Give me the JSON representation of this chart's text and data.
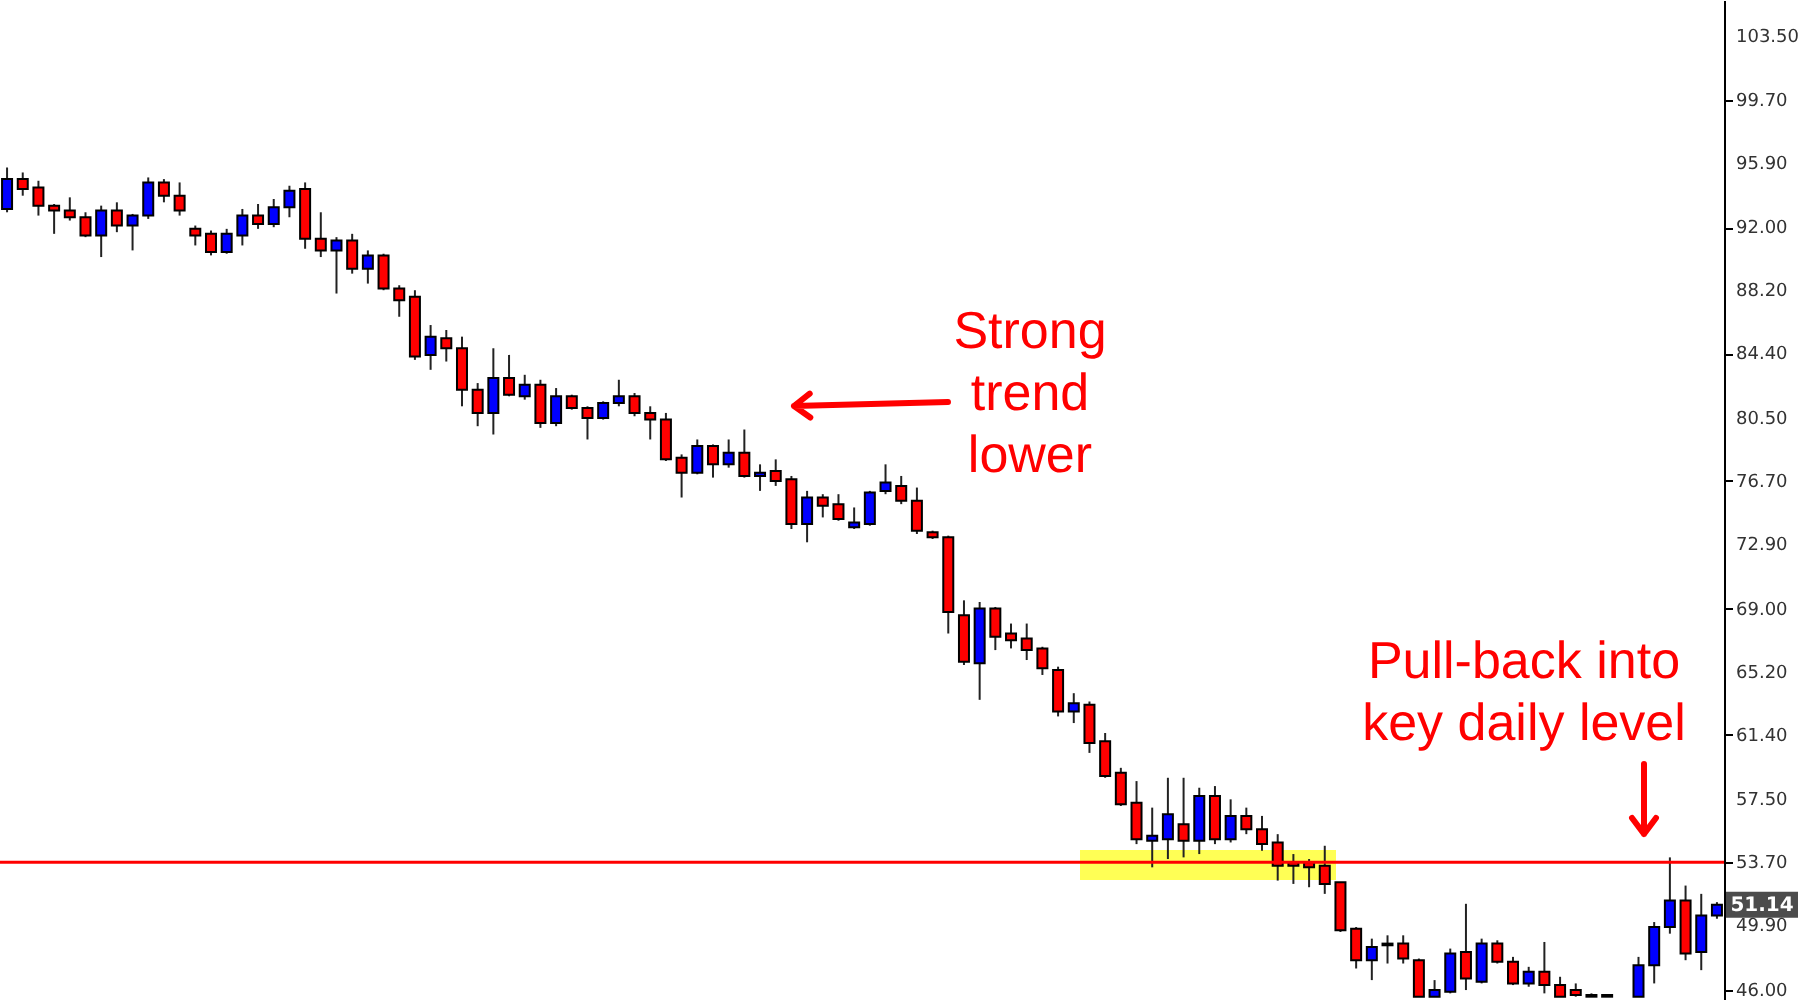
{
  "chart_data": {
    "type": "candlestick",
    "categories": [
      null,
      null,
      null,
      null,
      null,
      null,
      null,
      null,
      null,
      null,
      null,
      null,
      null,
      null,
      null,
      null,
      null,
      null,
      null,
      null,
      null,
      null,
      null,
      null,
      null,
      null,
      null,
      null,
      null,
      null,
      null,
      null,
      null,
      null,
      null,
      null,
      null,
      null,
      null,
      null,
      null,
      null,
      null,
      null,
      null,
      null,
      null,
      null,
      null,
      null,
      null,
      null,
      null,
      null,
      null,
      null,
      null,
      null,
      null,
      null,
      null,
      null,
      null,
      null,
      null,
      null,
      null,
      null,
      null,
      null,
      null,
      null,
      null,
      null,
      null,
      null,
      null,
      null,
      null,
      null,
      null,
      null,
      null,
      null,
      null,
      null,
      null,
      null,
      null,
      null,
      null,
      null,
      null,
      null,
      null,
      null,
      null,
      null,
      null,
      null,
      null,
      null,
      null,
      null,
      null,
      null,
      null,
      null,
      null,
      null
    ],
    "ohlc": [
      [
        93.1,
        95.6,
        92.9,
        94.9
      ],
      [
        94.9,
        95.3,
        93.9,
        94.3
      ],
      [
        94.4,
        94.8,
        92.7,
        93.3
      ],
      [
        93.3,
        93.4,
        91.6,
        93.0
      ],
      [
        93.0,
        93.8,
        92.4,
        92.6
      ],
      [
        92.6,
        92.9,
        91.4,
        91.5
      ],
      [
        91.5,
        93.3,
        90.2,
        93.0
      ],
      [
        93.0,
        93.5,
        91.7,
        92.1
      ],
      [
        92.1,
        92.8,
        90.6,
        92.7
      ],
      [
        92.7,
        95.0,
        92.5,
        94.7
      ],
      [
        94.7,
        94.9,
        93.5,
        93.9
      ],
      [
        93.9,
        94.7,
        92.7,
        93.0
      ],
      [
        91.9,
        92.1,
        90.9,
        91.5
      ],
      [
        91.6,
        91.8,
        90.3,
        90.5
      ],
      [
        90.5,
        91.9,
        90.4,
        91.6
      ],
      [
        91.5,
        93.1,
        90.9,
        92.7
      ],
      [
        92.7,
        93.4,
        91.9,
        92.2
      ],
      [
        92.2,
        93.7,
        92.0,
        93.2
      ],
      [
        93.2,
        94.5,
        92.6,
        94.2
      ],
      [
        94.3,
        94.7,
        90.7,
        91.3
      ],
      [
        91.3,
        92.9,
        90.2,
        90.6
      ],
      [
        90.6,
        91.4,
        88.0,
        91.2
      ],
      [
        91.2,
        91.6,
        89.2,
        89.5
      ],
      [
        89.5,
        90.6,
        88.6,
        90.3
      ],
      [
        90.3,
        90.4,
        88.2,
        88.3
      ],
      [
        88.3,
        88.5,
        86.6,
        87.6
      ],
      [
        87.8,
        88.2,
        84.0,
        84.2
      ],
      [
        84.3,
        86.1,
        83.4,
        85.4
      ],
      [
        85.3,
        85.8,
        83.9,
        84.7
      ],
      [
        84.7,
        85.4,
        81.2,
        82.2
      ],
      [
        82.2,
        82.6,
        80.0,
        80.8
      ],
      [
        80.8,
        84.7,
        79.5,
        82.9
      ],
      [
        82.9,
        84.3,
        81.8,
        81.9
      ],
      [
        81.8,
        83.1,
        81.6,
        82.5
      ],
      [
        82.5,
        82.8,
        79.9,
        80.2
      ],
      [
        80.2,
        82.3,
        80.0,
        81.8
      ],
      [
        81.8,
        81.9,
        81.0,
        81.1
      ],
      [
        81.1,
        81.2,
        79.2,
        80.5
      ],
      [
        80.5,
        81.5,
        80.4,
        81.4
      ],
      [
        81.4,
        82.8,
        81.2,
        81.8
      ],
      [
        81.8,
        82.0,
        80.6,
        80.8
      ],
      [
        80.8,
        81.2,
        79.2,
        80.4
      ],
      [
        80.4,
        80.8,
        77.9,
        78.0
      ],
      [
        78.1,
        78.3,
        75.7,
        77.2
      ],
      [
        77.2,
        79.2,
        77.1,
        78.8
      ],
      [
        78.8,
        78.9,
        76.9,
        77.7
      ],
      [
        77.7,
        79.2,
        77.5,
        78.4
      ],
      [
        78.4,
        79.8,
        76.9,
        77.0
      ],
      [
        77.0,
        77.7,
        76.1,
        77.2
      ],
      [
        77.3,
        78.0,
        76.4,
        76.7
      ],
      [
        76.8,
        77.0,
        73.8,
        74.1
      ],
      [
        74.1,
        76.1,
        73.0,
        75.7
      ],
      [
        75.7,
        75.9,
        74.5,
        75.2
      ],
      [
        75.3,
        75.9,
        74.3,
        74.4
      ],
      [
        73.9,
        75.1,
        73.8,
        74.2
      ],
      [
        74.1,
        76.1,
        74.0,
        76.0
      ],
      [
        76.1,
        77.7,
        75.9,
        76.6
      ],
      [
        76.4,
        77.0,
        75.3,
        75.5
      ],
      [
        75.5,
        76.3,
        73.5,
        73.7
      ],
      [
        73.6,
        73.7,
        73.2,
        73.3
      ],
      [
        73.3,
        73.4,
        67.5,
        68.8
      ],
      [
        68.6,
        69.5,
        65.6,
        65.8
      ],
      [
        65.7,
        69.4,
        63.5,
        69.0
      ],
      [
        69.0,
        69.1,
        66.5,
        67.3
      ],
      [
        67.5,
        68.1,
        66.6,
        67.1
      ],
      [
        67.2,
        68.1,
        65.9,
        66.5
      ],
      [
        66.6,
        66.7,
        65.0,
        65.4
      ],
      [
        65.3,
        65.5,
        62.5,
        62.8
      ],
      [
        62.8,
        63.9,
        62.1,
        63.3
      ],
      [
        63.2,
        63.4,
        60.3,
        60.9
      ],
      [
        61.0,
        61.5,
        58.8,
        58.9
      ],
      [
        59.1,
        59.4,
        57.1,
        57.2
      ],
      [
        57.3,
        58.6,
        54.8,
        55.1
      ],
      [
        55.0,
        57.0,
        53.4,
        55.3
      ],
      [
        55.1,
        58.8,
        53.9,
        56.6
      ],
      [
        56.0,
        58.8,
        54.0,
        55.0
      ],
      [
        55.0,
        58.2,
        54.2,
        57.7
      ],
      [
        57.7,
        58.3,
        54.8,
        55.1
      ],
      [
        55.1,
        57.5,
        54.9,
        56.5
      ],
      [
        56.5,
        57.0,
        55.4,
        55.7
      ],
      [
        55.7,
        56.5,
        54.4,
        54.8
      ],
      [
        54.9,
        55.4,
        52.6,
        53.5
      ],
      [
        53.7,
        54.2,
        52.4,
        53.5
      ],
      [
        53.7,
        53.9,
        52.2,
        53.4
      ],
      [
        53.5,
        54.7,
        51.8,
        52.4
      ],
      [
        52.5,
        52.5,
        49.5,
        49.6
      ],
      [
        49.7,
        49.8,
        47.3,
        47.8
      ],
      [
        47.8,
        49.1,
        46.6,
        48.6
      ],
      [
        48.8,
        49.3,
        47.6,
        48.7
      ],
      [
        48.8,
        49.3,
        47.6,
        47.9
      ],
      [
        47.8,
        47.9,
        45.6,
        45.6
      ],
      [
        45.6,
        46.6,
        45.6,
        46.0
      ],
      [
        45.9,
        48.5,
        45.8,
        48.2
      ],
      [
        48.3,
        51.2,
        46.0,
        46.7
      ],
      [
        46.5,
        49.1,
        46.4,
        48.8
      ],
      [
        48.8,
        49.0,
        47.6,
        47.7
      ],
      [
        47.7,
        48.0,
        46.3,
        46.4
      ],
      [
        46.4,
        47.4,
        46.2,
        47.1
      ],
      [
        47.1,
        48.9,
        45.8,
        46.3
      ],
      [
        46.3,
        46.8,
        45.6,
        45.6
      ],
      [
        46.0,
        46.4,
        45.6,
        45.7
      ],
      [
        45.6,
        45.8,
        45.6,
        45.7
      ],
      [
        45.7,
        45.7,
        45.6,
        45.6
      ],
      null,
      [
        45.6,
        48.0,
        45.6,
        47.5
      ],
      [
        47.5,
        50.1,
        46.4,
        49.8
      ],
      [
        49.8,
        54.0,
        49.4,
        51.4
      ],
      [
        51.4,
        52.3,
        47.8,
        48.2
      ],
      [
        48.3,
        51.8,
        47.2,
        50.5
      ],
      [
        50.5,
        51.3,
        50.3,
        51.14
      ]
    ],
    "colors": [
      "#0000ff",
      "#ff0000",
      "#ff0000",
      "#ff0000",
      "#ff0000",
      "#ff0000",
      "#0000ff",
      "#ff0000",
      "#0000ff",
      "#0000ff",
      "#ff0000",
      "#ff0000",
      "#ff0000",
      "#ff0000",
      "#0000ff",
      "#0000ff",
      "#ff0000",
      "#0000ff",
      "#0000ff",
      "#ff0000",
      "#ff0000",
      "#0000ff",
      "#ff0000",
      "#0000ff",
      "#ff0000",
      "#ff0000",
      "#ff0000",
      "#0000ff",
      "#ff0000",
      "#ff0000",
      "#ff0000",
      "#0000ff",
      "#ff0000",
      "#0000ff",
      "#ff0000",
      "#0000ff",
      "#ff0000",
      "#ff0000",
      "#0000ff",
      "#0000ff",
      "#ff0000",
      "#ff0000",
      "#ff0000",
      "#ff0000",
      "#0000ff",
      "#ff0000",
      "#0000ff",
      "#ff0000",
      "#0000ff",
      "#ff0000",
      "#ff0000",
      "#0000ff",
      "#ff0000",
      "#ff0000",
      "#0000ff",
      "#0000ff",
      "#0000ff",
      "#ff0000",
      "#ff0000",
      "#ff0000",
      "#ff0000",
      "#ff0000",
      "#0000ff",
      "#ff0000",
      "#ff0000",
      "#ff0000",
      "#ff0000",
      "#ff0000",
      "#0000ff",
      "#ff0000",
      "#ff0000",
      "#ff0000",
      "#ff0000",
      "#0000ff",
      "#0000ff",
      "#ff0000",
      "#0000ff",
      "#ff0000",
      "#0000ff",
      "#ff0000",
      "#ff0000",
      "#ff0000",
      "#ff0000",
      "#ff0000",
      "#ff0000",
      "#ff0000",
      "#ff0000",
      "#0000ff",
      "#ff0000",
      "#ff0000",
      "#ff0000",
      "#0000ff",
      "#0000ff",
      "#ff0000",
      "#0000ff",
      "#ff0000",
      "#ff0000",
      "#0000ff",
      "#ff0000",
      "#ff0000",
      "#ff0000",
      "#0000ff",
      "#ff0000",
      null,
      "#0000ff",
      "#0000ff",
      "#0000ff",
      "#ff0000",
      "#0000ff",
      "#0000ff"
    ],
    "ylim": [
      45.4,
      105.7
    ],
    "yticks": [
      {
        "value": 46.0,
        "label": "46.00"
      },
      {
        "value": 49.9,
        "label": "49.90"
      },
      {
        "value": 53.7,
        "label": "53.70"
      },
      {
        "value": 57.5,
        "label": "57.50"
      },
      {
        "value": 61.4,
        "label": "61.40"
      },
      {
        "value": 65.2,
        "label": "65.20"
      },
      {
        "value": 69.0,
        "label": "69.00"
      },
      {
        "value": 72.9,
        "label": "72.90"
      },
      {
        "value": 76.7,
        "label": "76.70"
      },
      {
        "value": 80.5,
        "label": "80.50"
      },
      {
        "value": 84.4,
        "label": "84.40"
      },
      {
        "value": 88.2,
        "label": "88.20"
      },
      {
        "value": 92.0,
        "label": "92.00"
      },
      {
        "value": 95.9,
        "label": "95.90"
      },
      {
        "value": 99.7,
        "label": "99.70"
      },
      {
        "value": 103.5,
        "label": "103.50"
      }
    ],
    "ref_lines": [
      {
        "axis": "y",
        "value": 53.7,
        "color": "#ff0000"
      }
    ],
    "annotations": [
      "Strong trend lower",
      "Pull-back into key daily level",
      {
        "text": "51.14",
        "y": 51.14
      }
    ]
  }
}
